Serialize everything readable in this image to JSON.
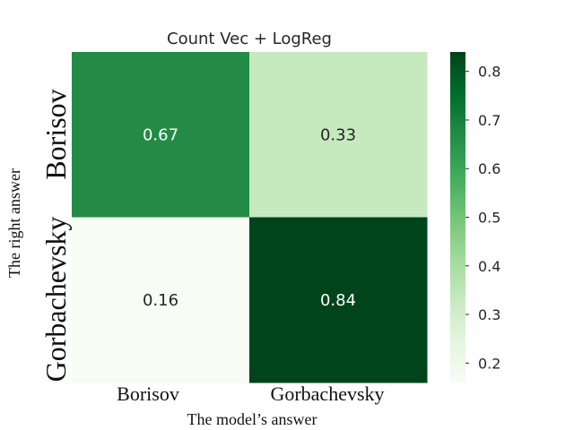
{
  "chart_data": {
    "type": "heatmap",
    "title": "Count Vec + LogReg",
    "xlabel": "The model’s answer",
    "ylabel": "The right answer",
    "x_categories": [
      "Borisov",
      "Gorbachevsky"
    ],
    "y_categories": [
      "Borisov",
      "Gorbachevsky"
    ],
    "values": [
      [
        0.67,
        0.33
      ],
      [
        0.16,
        0.84
      ]
    ],
    "value_labels": [
      [
        "0.67",
        "0.33"
      ],
      [
        "0.16",
        "0.84"
      ]
    ],
    "colormap": "Greens",
    "colorbar": {
      "range": [
        0.16,
        0.84
      ],
      "ticks": [
        0.2,
        0.3,
        0.4,
        0.5,
        0.6,
        0.7,
        0.8
      ],
      "tick_labels": [
        "0.2",
        "0.3",
        "0.4",
        "0.5",
        "0.6",
        "0.7",
        "0.8"
      ]
    }
  }
}
